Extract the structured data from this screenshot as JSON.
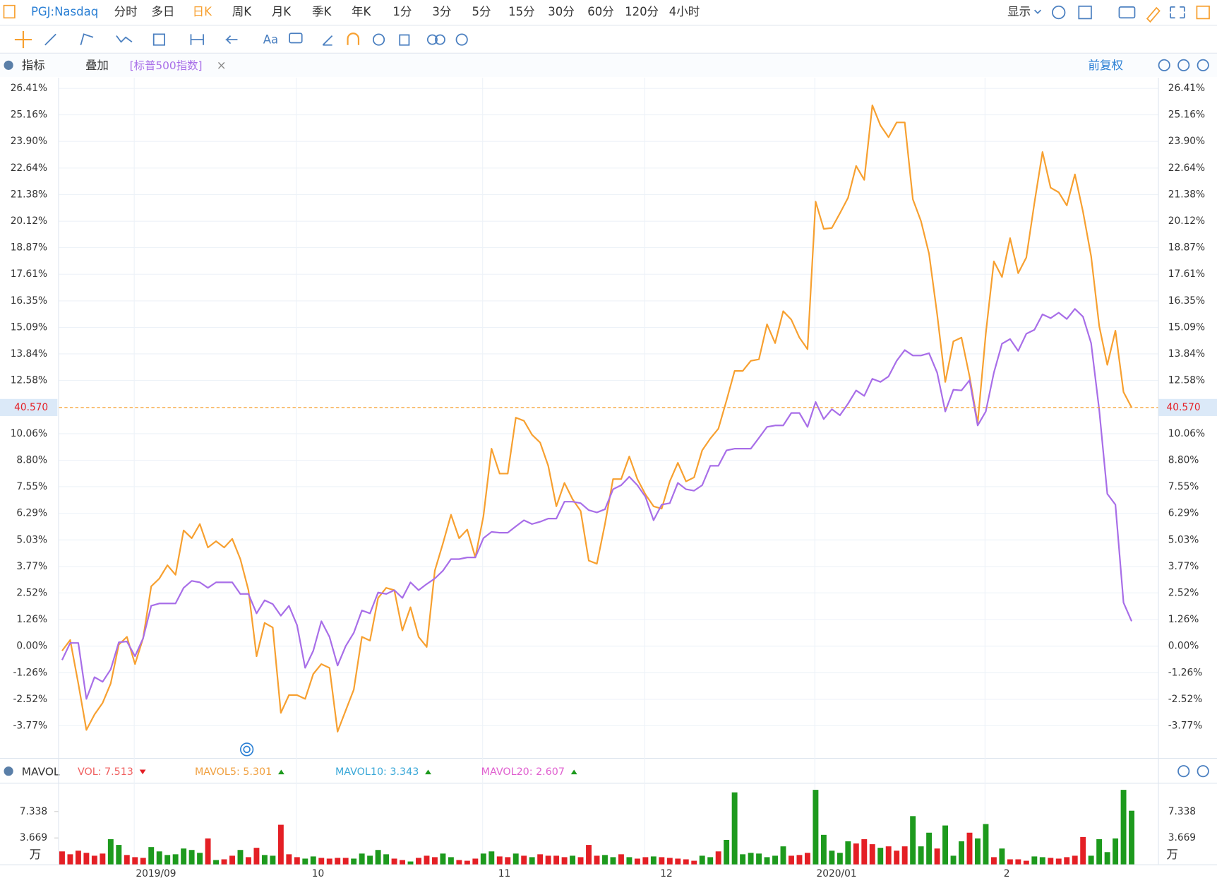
{
  "toolbar": {
    "periods": [
      "分时",
      "多日",
      "日K",
      "周K",
      "月K",
      "季K",
      "年K",
      "1分",
      "3分",
      "5分",
      "15分",
      "30分",
      "60分",
      "120分",
      "4小时"
    ],
    "selected": 2,
    "display": "显示",
    "font_button": "Aa"
  },
  "indicator_bar": {
    "indicators": "指标",
    "overlay": "叠加",
    "close": "×",
    "adjust": "前复权"
  },
  "chart_data": [
    {
      "type": "line",
      "categories": [
        null,
        null,
        null,
        null,
        null,
        null,
        null,
        null,
        null,
        "2019/09",
        null,
        null,
        null,
        null,
        null,
        null,
        null,
        null,
        null,
        null,
        null,
        null,
        null,
        null,
        null,
        null,
        null,
        null,
        null,
        "10",
        null,
        null,
        null,
        null,
        null,
        null,
        null,
        null,
        null,
        null,
        null,
        null,
        null,
        null,
        null,
        null,
        null,
        null,
        null,
        null,
        null,
        null,
        "11",
        null,
        null,
        null,
        null,
        null,
        null,
        null,
        null,
        null,
        null,
        null,
        null,
        null,
        null,
        null,
        null,
        null,
        null,
        null,
        "12",
        null,
        null,
        null,
        null,
        null,
        null,
        null,
        null,
        null,
        null,
        null,
        null,
        null,
        null,
        null,
        null,
        null,
        null,
        null,
        null,
        "2020/01",
        null,
        null,
        null,
        null,
        null,
        null,
        null,
        null,
        null,
        null,
        null,
        null,
        null,
        null,
        null,
        null,
        null,
        null,
        null,
        null,
        "2",
        null,
        null,
        null,
        null,
        null,
        null,
        null,
        null,
        null,
        null,
        null,
        null,
        null,
        null,
        null,
        null,
        null,
        null
      ],
      "series": [
        {
          "name": "PGJ:Nasdaq",
          "color": "#f7a030",
          "values": [
            -0.22,
            0.29,
            -1.77,
            -3.97,
            -3.24,
            -2.69,
            -1.77,
            0.07,
            0.44,
            -0.85,
            0.37,
            2.83,
            3.2,
            3.83,
            3.38,
            5.48,
            5.11,
            5.78,
            4.67,
            4.97,
            4.67,
            5.08,
            4.12,
            2.65,
            -0.48,
            1.1,
            0.88,
            -3.16,
            -2.32,
            -2.32,
            -2.5,
            -1.32,
            -0.85,
            -1.03,
            -4.05,
            -3.05,
            -2.06,
            0.44,
            0.26,
            2.28,
            2.76,
            2.65,
            0.74,
            1.84,
            0.44,
            -0.04,
            3.57,
            4.86,
            6.22,
            5.11,
            5.52,
            4.2,
            6.15,
            9.35,
            8.17,
            8.17,
            10.82,
            10.67,
            10.01,
            9.64,
            8.54,
            6.62,
            7.73,
            6.96,
            6.4,
            4.05,
            3.9,
            5.78,
            7.91,
            7.91,
            8.98,
            7.91,
            7.18,
            6.62,
            6.51,
            7.8,
            8.68,
            7.8,
            7.99,
            9.27,
            9.83,
            10.3,
            11.63,
            13.03,
            13.03,
            13.51,
            13.58,
            15.24,
            14.35,
            15.86,
            15.46,
            14.61,
            14.06,
            21.05,
            19.76,
            19.8,
            20.5,
            21.23,
            22.74,
            22.08,
            25.61,
            24.66,
            24.1,
            24.8,
            24.8,
            21.16,
            20.13,
            18.58,
            15.71,
            12.51,
            14.43,
            14.61,
            12.77,
            10.56,
            14.79,
            18.22,
            17.48,
            19.32,
            17.66,
            18.4,
            20.98,
            23.4,
            21.71,
            21.49,
            20.87,
            22.34,
            20.57,
            18.47,
            15.16,
            13.32,
            14.94,
            12.03,
            11.3
          ]
        },
        {
          "name": "[标普500指数]",
          "color": "#a86ee8",
          "values": [
            -0.66,
            0.15,
            0.15,
            -2.5,
            -1.47,
            -1.69,
            -1.1,
            0.18,
            0.22,
            -0.48,
            0.37,
            1.91,
            2.02,
            2.02,
            2.02,
            2.76,
            3.09,
            3.02,
            2.76,
            3.02,
            3.02,
            3.02,
            2.47,
            2.47,
            1.55,
            2.17,
            1.99,
            1.44,
            1.91,
            0.99,
            -1.03,
            -0.22,
            1.18,
            0.44,
            -0.92,
            0.0,
            0.63,
            1.69,
            1.55,
            2.54,
            2.47,
            2.65,
            2.28,
            3.02,
            2.65,
            2.94,
            3.2,
            3.57,
            4.12,
            4.12,
            4.2,
            4.2,
            5.11,
            5.41,
            5.37,
            5.37,
            5.67,
            5.96,
            5.78,
            5.89,
            6.04,
            6.04,
            6.84,
            6.84,
            6.77,
            6.44,
            6.33,
            6.48,
            7.43,
            7.62,
            8.02,
            7.62,
            7.07,
            5.96,
            6.7,
            6.77,
            7.73,
            7.43,
            7.36,
            7.62,
            8.54,
            8.54,
            9.27,
            9.35,
            9.35,
            9.35,
            9.86,
            10.38,
            10.45,
            10.45,
            11.04,
            11.04,
            10.38,
            11.56,
            10.75,
            11.22,
            10.93,
            11.48,
            12.11,
            11.85,
            12.66,
            12.51,
            12.77,
            13.51,
            14.02,
            13.76,
            13.76,
            13.87,
            12.95,
            11.11,
            12.14,
            12.11,
            12.59,
            10.45,
            11.11,
            12.95,
            14.32,
            14.54,
            13.98,
            14.79,
            14.98,
            15.71,
            15.53,
            15.79,
            15.49,
            15.97,
            15.6,
            14.35,
            11.19,
            7.21,
            6.7,
            2.06,
            1.18
          ]
        }
      ],
      "ylim": [
        -5.26,
        26.92
      ],
      "yticks": [
        {
          "value": -3.77,
          "label": "-3.77%"
        },
        {
          "value": -2.52,
          "label": "-2.52%"
        },
        {
          "value": -1.26,
          "label": "-1.26%"
        },
        {
          "value": 0,
          "label": "0.00%"
        },
        {
          "value": 1.26,
          "label": "1.26%"
        },
        {
          "value": 2.52,
          "label": "2.52%"
        },
        {
          "value": 3.77,
          "label": "3.77%"
        },
        {
          "value": 5.03,
          "label": "5.03%"
        },
        {
          "value": 6.29,
          "label": "6.29%"
        },
        {
          "value": 7.55,
          "label": "7.55%"
        },
        {
          "value": 8.8,
          "label": "8.80%"
        },
        {
          "value": 10.06,
          "label": "10.06%"
        },
        {
          "value": 12.58,
          "label": "12.58%"
        },
        {
          "value": 13.84,
          "label": "13.84%"
        },
        {
          "value": 15.09,
          "label": "15.09%"
        },
        {
          "value": 16.35,
          "label": "16.35%"
        },
        {
          "value": 17.61,
          "label": "17.61%"
        },
        {
          "value": 18.87,
          "label": "18.87%"
        },
        {
          "value": 20.12,
          "label": "20.12%"
        },
        {
          "value": 21.38,
          "label": "21.38%"
        },
        {
          "value": 22.64,
          "label": "22.64%"
        },
        {
          "value": 23.9,
          "label": "23.90%"
        },
        {
          "value": 25.16,
          "label": "25.16%"
        },
        {
          "value": 26.41,
          "label": "26.41%"
        }
      ],
      "last_price": "40.570",
      "grid": true
    },
    {
      "type": "bar",
      "title": "MAVOL",
      "legend": [
        {
          "label": "VOL: 7.513",
          "color": "#f06060"
        },
        {
          "label": "MAVOL5: 5.301",
          "color": "#f0a040"
        },
        {
          "label": "MAVOL10: 3.343",
          "color": "#3aa8d8"
        },
        {
          "label": "MAVOL20: 2.607",
          "color": "#e060d0"
        }
      ],
      "values": [
        1.8,
        1.4,
        1.9,
        1.6,
        1.2,
        1.5,
        3.5,
        2.7,
        1.3,
        1.0,
        0.9,
        2.4,
        1.8,
        1.3,
        1.4,
        2.2,
        2.0,
        1.6,
        3.6,
        0.6,
        0.7,
        1.2,
        2.0,
        1.0,
        2.3,
        1.3,
        1.2,
        5.5,
        1.4,
        1.0,
        0.8,
        1.1,
        0.9,
        0.8,
        0.9,
        0.9,
        0.8,
        1.5,
        1.2,
        2.0,
        1.4,
        0.8,
        0.6,
        0.4,
        0.9,
        1.2,
        1.0,
        1.5,
        1.0,
        0.6,
        0.5,
        0.8,
        1.5,
        1.8,
        1.1,
        1.0,
        1.5,
        1.2,
        1.0,
        1.4,
        1.2,
        1.2,
        1.0,
        1.2,
        1.0,
        2.7,
        1.2,
        1.3,
        1.0,
        1.4,
        1.0,
        0.8,
        1.0,
        1.1,
        1.0,
        0.9,
        0.8,
        0.7,
        0.5,
        1.2,
        1.0,
        1.8,
        3.4,
        10.0,
        1.4,
        1.6,
        1.5,
        1.0,
        1.2,
        2.5,
        1.2,
        1.3,
        1.6,
        10.35,
        4.1,
        1.9,
        1.6,
        3.2,
        2.9,
        3.5,
        2.8,
        2.3,
        2.5,
        1.9,
        2.5,
        6.7,
        2.5,
        4.4,
        2.2,
        5.4,
        1.2,
        3.2,
        4.4,
        3.6,
        5.6,
        1.0,
        2.2,
        0.7,
        0.7,
        0.5,
        1.1,
        1.0,
        0.9,
        0.8,
        1.0,
        1.2,
        3.8,
        1.2,
        3.5,
        1.7,
        3.6,
        10.35,
        7.45
      ],
      "colors": [
        "#e41f25",
        "#e41f25",
        "#e41f25",
        "#e41f25",
        "#e41f25",
        "#e41f25",
        "#1d9a1d",
        "#1d9a1d",
        "#e41f25",
        "#e41f25",
        "#e41f25",
        "#1d9a1d",
        "#1d9a1d",
        "#1d9a1d",
        "#1d9a1d",
        "#1d9a1d",
        "#1d9a1d",
        "#1d9a1d",
        "#e41f25",
        "#1d9a1d",
        "#e41f25",
        "#e41f25",
        "#1d9a1d",
        "#e41f25",
        "#e41f25",
        "#1d9a1d",
        "#1d9a1d",
        "#e41f25",
        "#e41f25",
        "#e41f25",
        "#1d9a1d",
        "#1d9a1d",
        "#e41f25",
        "#e41f25",
        "#e41f25",
        "#e41f25",
        "#1d9a1d",
        "#1d9a1d",
        "#1d9a1d",
        "#1d9a1d",
        "#1d9a1d",
        "#e41f25",
        "#e41f25",
        "#1d9a1d",
        "#e41f25",
        "#e41f25",
        "#e41f25",
        "#1d9a1d",
        "#1d9a1d",
        "#e41f25",
        "#e41f25",
        "#e41f25",
        "#1d9a1d",
        "#1d9a1d",
        "#e41f25",
        "#e41f25",
        "#1d9a1d",
        "#e41f25",
        "#1d9a1d",
        "#e41f25",
        "#e41f25",
        "#e41f25",
        "#e41f25",
        "#1d9a1d",
        "#e41f25",
        "#e41f25",
        "#e41f25",
        "#1d9a1d",
        "#1d9a1d",
        "#e41f25",
        "#1d9a1d",
        "#e41f25",
        "#e41f25",
        "#1d9a1d",
        "#e41f25",
        "#e41f25",
        "#e41f25",
        "#e41f25",
        "#e41f25",
        "#1d9a1d",
        "#1d9a1d",
        "#e41f25",
        "#1d9a1d",
        "#1d9a1d",
        "#1d9a1d",
        "#1d9a1d",
        "#1d9a1d",
        "#1d9a1d",
        "#1d9a1d",
        "#1d9a1d",
        "#e41f25",
        "#e41f25",
        "#e41f25",
        "#1d9a1d",
        "#1d9a1d",
        "#1d9a1d",
        "#1d9a1d",
        "#1d9a1d",
        "#e41f25",
        "#e41f25",
        "#e41f25",
        "#1d9a1d",
        "#e41f25",
        "#e41f25",
        "#e41f25",
        "#1d9a1d",
        "#1d9a1d",
        "#1d9a1d",
        "#e41f25",
        "#1d9a1d",
        "#1d9a1d",
        "#1d9a1d",
        "#e41f25",
        "#1d9a1d",
        "#1d9a1d",
        "#e41f25",
        "#1d9a1d",
        "#e41f25",
        "#e41f25",
        "#e41f25",
        "#1d9a1d",
        "#1d9a1d",
        "#e41f25",
        "#e41f25",
        "#e41f25",
        "#e41f25",
        "#e41f25",
        "#1d9a1d",
        "#1d9a1d",
        "#1d9a1d",
        "#1d9a1d",
        "#1d9a1d",
        "#1d9a1d"
      ],
      "ylim": [
        0,
        11.11
      ],
      "yticks": [
        3.669,
        7.338
      ],
      "y_unit": "万"
    }
  ]
}
